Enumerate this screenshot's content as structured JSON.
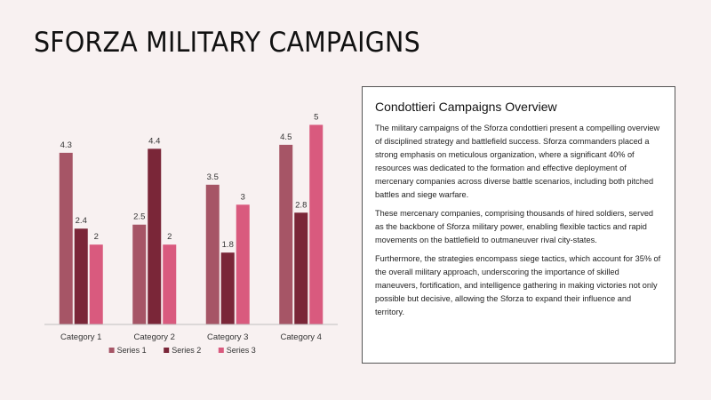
{
  "slide": {
    "title": "SFORZA MILITARY CAMPAIGNS"
  },
  "text_box": {
    "heading": "Condottieri Campaigns Overview",
    "paragraphs": [
      "The military campaigns of the Sforza condottieri present a compelling overview of disciplined strategy and battlefield success. Sforza commanders placed a strong emphasis on meticulous organization, where a significant 40% of resources was dedicated to the formation and effective deployment of mercenary companies across diverse battle scenarios, including both pitched battles and siege warfare.",
      "These mercenary companies, comprising thousands of hired soldiers, served as the backbone of Sforza military power, enabling flexible tactics and rapid movements on the battlefield to outmaneuver rival city-states.",
      "Furthermore, the strategies encompass siege tactics, which account for 35% of the overall military approach, underscoring the importance of skilled maneuvers, fortification, and intelligence gathering in making victories not only possible but decisive, allowing the Sforza to expand their influence and territory."
    ]
  },
  "chart_data": {
    "type": "bar",
    "categories": [
      "Category 1",
      "Category 2",
      "Category 3",
      "Category 4"
    ],
    "series": [
      {
        "name": "Series 1",
        "values": [
          4.3,
          2.5,
          3.5,
          4.5
        ],
        "color": "#a65566"
      },
      {
        "name": "Series 2",
        "values": [
          2.4,
          4.4,
          1.8,
          2.8
        ],
        "color": "#7a2638"
      },
      {
        "name": "Series 3",
        "values": [
          2,
          2,
          3,
          5
        ],
        "color": "#d95a7e"
      }
    ],
    "ylim": [
      0,
      5.5
    ],
    "data_labels": true,
    "grid": false,
    "legend_position": "bottom",
    "axis_line_color": "#bfbfbf"
  }
}
